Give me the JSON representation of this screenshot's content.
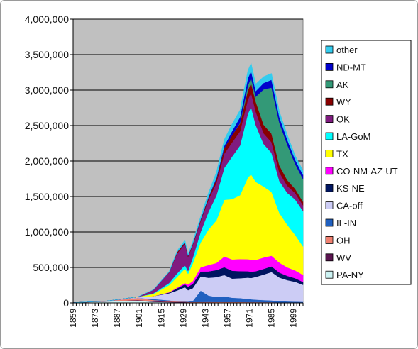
{
  "chart_data": {
    "type": "area",
    "stacked": true,
    "title": "",
    "xlabel": "",
    "ylabel": "",
    "x": [
      1859,
      1880,
      1900,
      1910,
      1920,
      1925,
      1930,
      1932,
      1935,
      1940,
      1945,
      1950,
      1955,
      1960,
      1965,
      1970,
      1972,
      1975,
      1980,
      1985,
      1990,
      1995,
      2000,
      2005
    ],
    "xlim": [
      1859,
      2005
    ],
    "ylim": [
      0,
      4000000
    ],
    "x_tick_labels": [
      "1859",
      "1873",
      "1887",
      "1901",
      "1915",
      "1929",
      "1943",
      "1957",
      "1971",
      "1985",
      "1999"
    ],
    "y_tick_labels": [
      "0",
      "500,000",
      "1,000,000",
      "1,500,000",
      "2,000,000",
      "2,500,000",
      "3,000,000",
      "3,500,000",
      "4,000,000"
    ],
    "y_ticks": [
      0,
      500000,
      1000000,
      1500000,
      2000000,
      2500000,
      3000000,
      3500000,
      4000000
    ],
    "grid": "horizontal",
    "legend_position": "right",
    "plot_background": "#c0c0c0",
    "series": [
      {
        "name": "PA-NY",
        "color": "#ccf2f2",
        "values": [
          3000,
          20000,
          30000,
          15000,
          10000,
          8000,
          7000,
          6000,
          5000,
          5000,
          5000,
          5000,
          4000,
          4000,
          4000,
          3000,
          3000,
          3000,
          3000,
          3000,
          2000,
          2000,
          2000,
          2000
        ]
      },
      {
        "name": "WV",
        "color": "#5a1450",
        "values": [
          0,
          3000,
          10000,
          10000,
          8000,
          6000,
          5000,
          4000,
          4000,
          4000,
          4000,
          3000,
          3000,
          2000,
          2000,
          2000,
          2000,
          2000,
          2000,
          2000,
          1000,
          1000,
          1000,
          1000
        ]
      },
      {
        "name": "OH",
        "color": "#f08070",
        "values": [
          0,
          3000,
          30000,
          15000,
          8000,
          6000,
          5000,
          4000,
          4000,
          4000,
          5000,
          5000,
          6000,
          7000,
          7000,
          6000,
          6000,
          6000,
          5000,
          5000,
          4000,
          3000,
          3000,
          2000
        ]
      },
      {
        "name": "IL-IN",
        "color": "#2060c0",
        "values": [
          0,
          0,
          0,
          15000,
          10000,
          5000,
          5000,
          5000,
          15000,
          160000,
          90000,
          70000,
          80000,
          60000,
          55000,
          45000,
          40000,
          35000,
          30000,
          25000,
          20000,
          15000,
          12000,
          10000
        ]
      },
      {
        "name": "CA-off",
        "color": "#ccccf5",
        "values": [
          0,
          0,
          10000,
          40000,
          100000,
          150000,
          200000,
          160000,
          180000,
          200000,
          250000,
          280000,
          300000,
          270000,
          280000,
          300000,
          300000,
          320000,
          360000,
          400000,
          330000,
          300000,
          280000,
          240000
        ]
      },
      {
        "name": "KS-NE",
        "color": "#001560",
        "values": [
          0,
          0,
          0,
          0,
          10000,
          30000,
          40000,
          50000,
          60000,
          70000,
          90000,
          100000,
          110000,
          110000,
          100000,
          90000,
          90000,
          80000,
          80000,
          80000,
          70000,
          60000,
          50000,
          40000
        ]
      },
      {
        "name": "CO-NM-AZ-UT",
        "color": "#ff00ff",
        "values": [
          0,
          0,
          0,
          0,
          5000,
          10000,
          20000,
          30000,
          40000,
          60000,
          90000,
          100000,
          150000,
          160000,
          170000,
          170000,
          170000,
          160000,
          160000,
          150000,
          140000,
          120000,
          110000,
          100000
        ]
      },
      {
        "name": "TX",
        "color": "#ffff00",
        "values": [
          0,
          0,
          5000,
          30000,
          100000,
          150000,
          200000,
          150000,
          250000,
          350000,
          500000,
          600000,
          800000,
          850000,
          900000,
          1150000,
          1200000,
          1100000,
          1000000,
          900000,
          700000,
          600000,
          500000,
          400000
        ]
      },
      {
        "name": "LA-GoM",
        "color": "#00ffff",
        "values": [
          0,
          0,
          0,
          10000,
          30000,
          50000,
          50000,
          40000,
          80000,
          150000,
          250000,
          350000,
          450000,
          600000,
          700000,
          900000,
          950000,
          800000,
          600000,
          550000,
          450000,
          450000,
          500000,
          500000
        ]
      },
      {
        "name": "OK",
        "color": "#801b80",
        "values": [
          0,
          0,
          0,
          50000,
          150000,
          280000,
          300000,
          200000,
          180000,
          150000,
          170000,
          180000,
          200000,
          200000,
          200000,
          200000,
          200000,
          190000,
          150000,
          150000,
          120000,
          100000,
          90000,
          80000
        ]
      },
      {
        "name": "WY",
        "color": "#880000",
        "values": [
          0,
          0,
          0,
          0,
          5000,
          20000,
          20000,
          15000,
          15000,
          20000,
          30000,
          50000,
          80000,
          100000,
          110000,
          130000,
          140000,
          140000,
          120000,
          120000,
          100000,
          80000,
          60000,
          50000
        ]
      },
      {
        "name": "AK",
        "color": "#339977",
        "values": [
          0,
          0,
          0,
          0,
          0,
          0,
          0,
          0,
          0,
          0,
          0,
          0,
          0,
          0,
          10000,
          70000,
          70000,
          70000,
          500000,
          650000,
          600000,
          500000,
          350000,
          320000
        ]
      },
      {
        "name": "ND-MT",
        "color": "#0000cc",
        "values": [
          0,
          0,
          0,
          0,
          0,
          0,
          5000,
          5000,
          5000,
          10000,
          10000,
          20000,
          30000,
          60000,
          80000,
          100000,
          100000,
          80000,
          90000,
          110000,
          80000,
          70000,
          60000,
          60000
        ]
      },
      {
        "name": "other",
        "color": "#33ccee",
        "values": [
          0,
          0,
          0,
          5000,
          10000,
          20000,
          30000,
          25000,
          30000,
          40000,
          60000,
          80000,
          90000,
          100000,
          100000,
          110000,
          110000,
          100000,
          90000,
          90000,
          80000,
          70000,
          60000,
          60000
        ]
      }
    ]
  }
}
